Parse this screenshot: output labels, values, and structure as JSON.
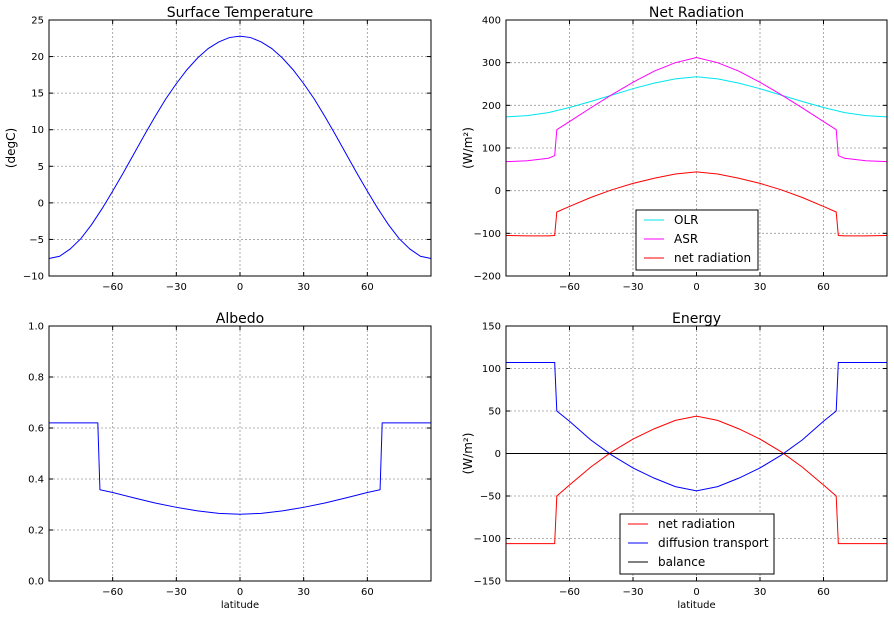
{
  "chart_data": [
    {
      "id": "surface-temperature",
      "type": "line",
      "title": "Surface Temperature",
      "xlabel": "",
      "ylabel": "(degC)",
      "xlim": [
        -90,
        90
      ],
      "ylim": [
        -10,
        25
      ],
      "xticks": [
        -60,
        -30,
        0,
        30,
        60
      ],
      "yticks": [
        -10,
        -5,
        0,
        5,
        10,
        15,
        20,
        25
      ],
      "grid": true,
      "legend": null,
      "series": [
        {
          "color": "#0000ff",
          "x": [
            -90,
            -85,
            -80,
            -75,
            -70,
            -65,
            -60,
            -55,
            -50,
            -45,
            -40,
            -35,
            -30,
            -25,
            -20,
            -15,
            -10,
            -5,
            0,
            5,
            10,
            15,
            20,
            25,
            30,
            35,
            40,
            45,
            50,
            55,
            60,
            65,
            70,
            75,
            80,
            85,
            90
          ],
          "y": [
            -7.6,
            -7.3,
            -6.3,
            -4.9,
            -3.0,
            -0.8,
            1.6,
            4.1,
            6.7,
            9.3,
            11.8,
            14.2,
            16.3,
            18.2,
            19.8,
            21.1,
            22.0,
            22.6,
            22.8,
            22.6,
            22.0,
            21.1,
            19.8,
            18.2,
            16.3,
            14.2,
            11.8,
            9.3,
            6.7,
            4.1,
            1.6,
            -0.8,
            -3.0,
            -4.9,
            -6.3,
            -7.3,
            -7.6
          ]
        }
      ]
    },
    {
      "id": "net-radiation",
      "type": "line",
      "title": "Net Radiation",
      "xlabel": "",
      "ylabel": "(W/m²)",
      "xlim": [
        -90,
        90
      ],
      "ylim": [
        -200,
        400
      ],
      "xticks": [
        -60,
        -30,
        0,
        30,
        60
      ],
      "yticks": [
        -200,
        -100,
        0,
        100,
        200,
        300,
        400
      ],
      "grid": true,
      "legend": "lower-center",
      "series": [
        {
          "name": "OLR",
          "color": "#00e5ee",
          "x": [
            -90,
            -80,
            -70,
            -60,
            -50,
            -40,
            -30,
            -20,
            -10,
            0,
            10,
            20,
            30,
            40,
            50,
            60,
            70,
            80,
            90
          ],
          "y": [
            173,
            176,
            183,
            195,
            209,
            224,
            239,
            252,
            262,
            267,
            262,
            252,
            239,
            224,
            209,
            195,
            183,
            176,
            173
          ]
        },
        {
          "name": "ASR",
          "color": "#ff00ff",
          "x": [
            -90,
            -80,
            -70,
            -67,
            -66,
            -60,
            -50,
            -40,
            -30,
            -20,
            -10,
            0,
            10,
            20,
            30,
            40,
            50,
            60,
            66,
            67,
            70,
            80,
            90
          ],
          "y": [
            68,
            70,
            76,
            82,
            143,
            162,
            194,
            225,
            254,
            280,
            300,
            312,
            300,
            280,
            254,
            225,
            194,
            162,
            143,
            82,
            76,
            70,
            68
          ]
        },
        {
          "name": "net radiation",
          "color": "#ff0000",
          "x": [
            -90,
            -80,
            -70,
            -67,
            -66,
            -60,
            -50,
            -40,
            -30,
            -20,
            -10,
            0,
            10,
            20,
            30,
            40,
            50,
            60,
            66,
            67,
            70,
            80,
            90
          ],
          "y": [
            -105,
            -106,
            -106,
            -105,
            -50,
            -37,
            -16,
            2,
            17,
            29,
            39,
            44,
            39,
            29,
            17,
            2,
            -16,
            -37,
            -50,
            -105,
            -106,
            -106,
            -105
          ]
        }
      ]
    },
    {
      "id": "albedo",
      "type": "line",
      "title": "Albedo",
      "xlabel": "latitude",
      "ylabel": "",
      "xlim": [
        -90,
        90
      ],
      "ylim": [
        0.0,
        1.0
      ],
      "xticks": [
        -60,
        -30,
        0,
        30,
        60
      ],
      "yticks": [
        0.0,
        0.2,
        0.4,
        0.6,
        0.8,
        1.0
      ],
      "grid": true,
      "legend": null,
      "series": [
        {
          "color": "#0000ff",
          "x": [
            -90,
            -80,
            -70,
            -67,
            -66,
            -60,
            -50,
            -40,
            -30,
            -20,
            -10,
            0,
            10,
            20,
            30,
            40,
            50,
            60,
            66,
            67,
            70,
            80,
            90
          ],
          "y": [
            0.62,
            0.62,
            0.62,
            0.62,
            0.358,
            0.347,
            0.326,
            0.306,
            0.289,
            0.275,
            0.265,
            0.262,
            0.265,
            0.275,
            0.289,
            0.306,
            0.326,
            0.347,
            0.358,
            0.62,
            0.62,
            0.62,
            0.62
          ]
        }
      ]
    },
    {
      "id": "energy",
      "type": "line",
      "title": "Energy",
      "xlabel": "latitude",
      "ylabel": "(W/m²)",
      "xlim": [
        -90,
        90
      ],
      "ylim": [
        -150,
        150
      ],
      "xticks": [
        -60,
        -30,
        0,
        30,
        60
      ],
      "yticks": [
        -150,
        -100,
        -50,
        0,
        50,
        100,
        150
      ],
      "grid": true,
      "legend": "lower-center",
      "series": [
        {
          "name": "net radiation",
          "color": "#ff0000",
          "x": [
            -90,
            -80,
            -70,
            -67,
            -66,
            -60,
            -50,
            -40,
            -30,
            -20,
            -10,
            0,
            10,
            20,
            30,
            40,
            50,
            60,
            66,
            67,
            70,
            80,
            90
          ],
          "y": [
            -106,
            -106,
            -106,
            -106,
            -50,
            -37,
            -16,
            2,
            17,
            29,
            39,
            44,
            39,
            29,
            17,
            2,
            -16,
            -37,
            -50,
            -106,
            -106,
            -106,
            -106
          ]
        },
        {
          "name": "diffusion transport",
          "color": "#0000ff",
          "x": [
            -90,
            -80,
            -70,
            -67,
            -66,
            -60,
            -50,
            -40,
            -30,
            -20,
            -10,
            0,
            10,
            20,
            30,
            40,
            50,
            60,
            66,
            67,
            70,
            80,
            90
          ],
          "y": [
            107,
            107,
            107,
            107,
            50,
            38,
            16,
            -2,
            -17,
            -29,
            -39,
            -44,
            -39,
            -29,
            -17,
            -2,
            16,
            38,
            50,
            107,
            107,
            107,
            107
          ]
        },
        {
          "name": "balance",
          "color": "#000000",
          "x": [
            -90,
            90
          ],
          "y": [
            0,
            0
          ]
        }
      ]
    }
  ]
}
